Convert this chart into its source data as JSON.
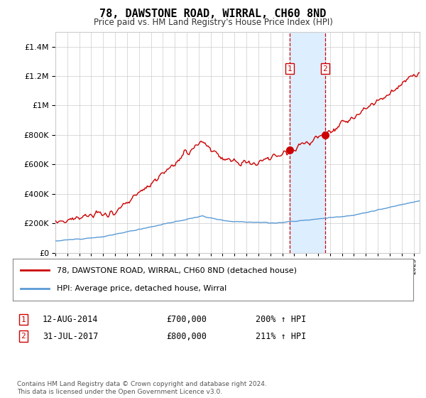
{
  "title": "78, DAWSTONE ROAD, WIRRAL, CH60 8ND",
  "subtitle": "Price paid vs. HM Land Registry's House Price Index (HPI)",
  "red_label": "78, DAWSTONE ROAD, WIRRAL, CH60 8ND (detached house)",
  "blue_label": "HPI: Average price, detached house, Wirral",
  "sale1_date": "12-AUG-2014",
  "sale1_price": "£700,000",
  "sale1_hpi": "200% ↑ HPI",
  "sale1_year": 2014.62,
  "sale1_value": 700000,
  "sale2_date": "31-JUL-2017",
  "sale2_price": "£800,000",
  "sale2_hpi": "211% ↑ HPI",
  "sale2_year": 2017.58,
  "sale2_value": 800000,
  "ylim_max": 1500000,
  "xlim_start": 1995,
  "xlim_end": 2025.5,
  "footer": "Contains HM Land Registry data © Crown copyright and database right 2024.\nThis data is licensed under the Open Government Licence v3.0.",
  "bg_color": "#ffffff",
  "grid_color": "#cccccc",
  "red_color": "#cc0000",
  "blue_color": "#5b9bd5",
  "highlight_color": "#ddeeff"
}
